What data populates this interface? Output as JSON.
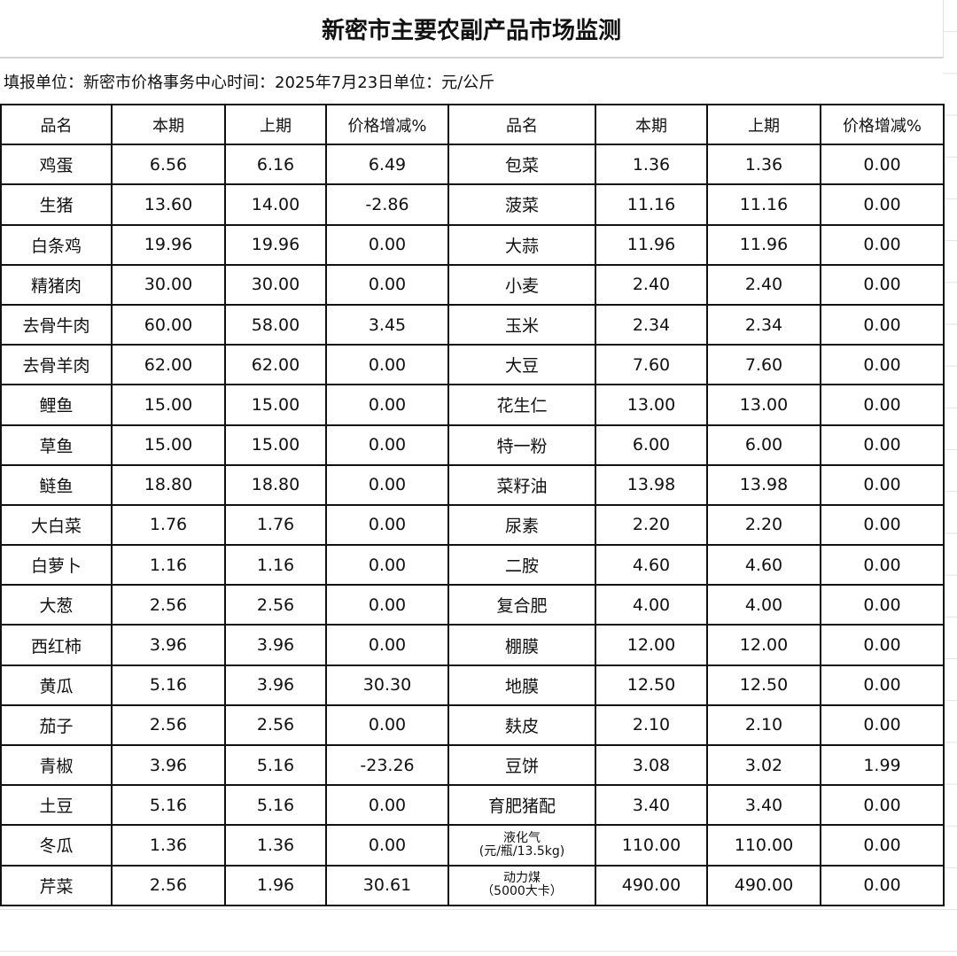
{
  "title": "新密市主要农副产品市场监测",
  "subtitle": "填报单位：新密市价格事务中心时间：2025年7月23日单位：元/公斤",
  "headers": [
    "品名",
    "本期",
    "上期",
    "价格增减%",
    "品名",
    "本期",
    "上期",
    "价格增减%"
  ],
  "rows": [
    [
      "鸡蛋",
      "6.56",
      "6.16",
      "6.49",
      "包菜",
      "1.36",
      "1.36",
      "0.00"
    ],
    [
      "生猪",
      "13.60",
      "14.00",
      "-2.86",
      "菠菜",
      "11.16",
      "11.16",
      "0.00"
    ],
    [
      "白条鸡",
      "19.96",
      "19.96",
      "0.00",
      "大蒜",
      "11.96",
      "11.96",
      "0.00"
    ],
    [
      "精猪肉",
      "30.00",
      "30.00",
      "0.00",
      "小麦",
      "2.40",
      "2.40",
      "0.00"
    ],
    [
      "去骨牛肉",
      "60.00",
      "58.00",
      "3.45",
      "玉米",
      "2.34",
      "2.34",
      "0.00"
    ],
    [
      "去骨羊肉",
      "62.00",
      "62.00",
      "0.00",
      "大豆",
      "7.60",
      "7.60",
      "0.00"
    ],
    [
      "鲤鱼",
      "15.00",
      "15.00",
      "0.00",
      "花生仁",
      "13.00",
      "13.00",
      "0.00"
    ],
    [
      "草鱼",
      "15.00",
      "15.00",
      "0.00",
      "特一粉",
      "6.00",
      "6.00",
      "0.00"
    ],
    [
      "鲢鱼",
      "18.80",
      "18.80",
      "0.00",
      "菜籽油",
      "13.98",
      "13.98",
      "0.00"
    ],
    [
      "大白菜",
      "1.76",
      "1.76",
      "0.00",
      "尿素",
      "2.20",
      "2.20",
      "0.00"
    ],
    [
      "白萝卜",
      "1.16",
      "1.16",
      "0.00",
      "二胺",
      "4.60",
      "4.60",
      "0.00"
    ],
    [
      "大葱",
      "2.56",
      "2.56",
      "0.00",
      "复合肥",
      "4.00",
      "4.00",
      "0.00"
    ],
    [
      "西红柿",
      "3.96",
      "3.96",
      "0.00",
      "棚膜",
      "12.00",
      "12.00",
      "0.00"
    ],
    [
      "黄瓜",
      "5.16",
      "3.96",
      "30.30",
      "地膜",
      "12.50",
      "12.50",
      "0.00"
    ],
    [
      "茄子",
      "2.56",
      "2.56",
      "0.00",
      "麸皮",
      "2.10",
      "2.10",
      "0.00"
    ],
    [
      "青椒",
      "3.96",
      "5.16",
      "-23.26",
      "豆饼",
      "3.08",
      "3.02",
      "1.99"
    ],
    [
      "土豆",
      "5.16",
      "5.16",
      "0.00",
      "育肥猪配",
      "3.40",
      "3.40",
      "0.00"
    ],
    [
      "冬瓜",
      "1.36",
      "1.36",
      "0.00",
      "液化气\n(元/瓶/13.5kg)",
      "110.00",
      "110.00",
      "0.00"
    ],
    [
      "芹菜",
      "2.56",
      "1.96",
      "30.61",
      "动力煤\n（5000大卡）",
      "490.00",
      "490.00",
      "0.00"
    ]
  ]
}
